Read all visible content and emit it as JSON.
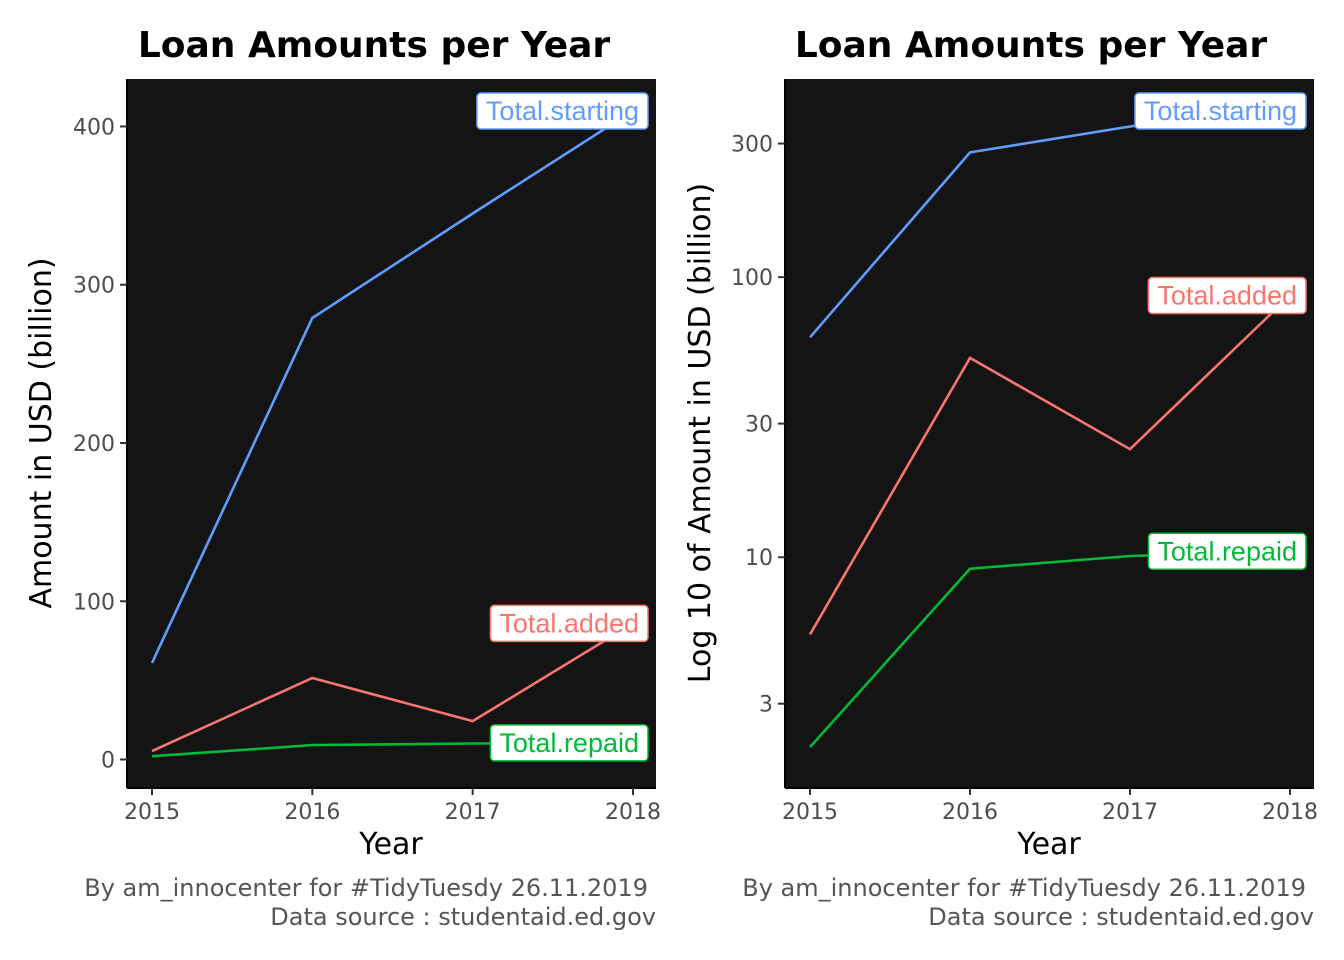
{
  "chart_data": [
    {
      "type": "line",
      "title": "Loan Amounts per Year",
      "xlabel": "Year",
      "ylabel": "Amount in USD (billion)",
      "x": [
        2015,
        2016,
        2017,
        2018
      ],
      "x_ticks": [
        "2015",
        "2016",
        "2017",
        "2018"
      ],
      "y_ticks": [
        "0",
        "100",
        "200",
        "300",
        "400"
      ],
      "y_tick_values": [
        0,
        100,
        200,
        300,
        400
      ],
      "ylim": [
        -18,
        430
      ],
      "yscale": "linear",
      "background": "#141414",
      "grid": false,
      "series": [
        {
          "name": "Total.starting",
          "color": "#619CFF",
          "values": [
            61,
            279,
            345,
            410
          ]
        },
        {
          "name": "Total.added",
          "color": "#F8766D",
          "values": [
            5.3,
            51.5,
            24.3,
            86
          ]
        },
        {
          "name": "Total.repaid",
          "color": "#00BA38",
          "values": [
            2.1,
            9.1,
            10.1,
            10.5
          ]
        }
      ],
      "caption": [
        "By am_innocenter for #TidyTuesdy 26.11.2019",
        "Data source : studentaid.ed.gov"
      ]
    },
    {
      "type": "line",
      "title": "Loan Amounts per Year",
      "xlabel": "Year",
      "ylabel": "Log 10 of Amount in USD (billion)",
      "x": [
        2015,
        2016,
        2017,
        2018
      ],
      "x_ticks": [
        "2015",
        "2016",
        "2017",
        "2018"
      ],
      "y_ticks": [
        "3",
        "10",
        "30",
        "100",
        "300"
      ],
      "y_tick_values": [
        3,
        10,
        30,
        100,
        300
      ],
      "ylim": [
        1.5,
        510
      ],
      "yscale": "log10",
      "background": "#141414",
      "grid": false,
      "series": [
        {
          "name": "Total.starting",
          "color": "#619CFF",
          "values": [
            61,
            279,
            345,
            410
          ]
        },
        {
          "name": "Total.added",
          "color": "#F8766D",
          "values": [
            5.3,
            51.5,
            24.3,
            86
          ]
        },
        {
          "name": "Total.repaid",
          "color": "#00BA38",
          "values": [
            2.1,
            9.1,
            10.1,
            10.5
          ]
        }
      ],
      "caption": [
        "By am_innocenter for #TidyTuesdy 26.11.2019",
        "Data source : studentaid.ed.gov"
      ]
    }
  ]
}
